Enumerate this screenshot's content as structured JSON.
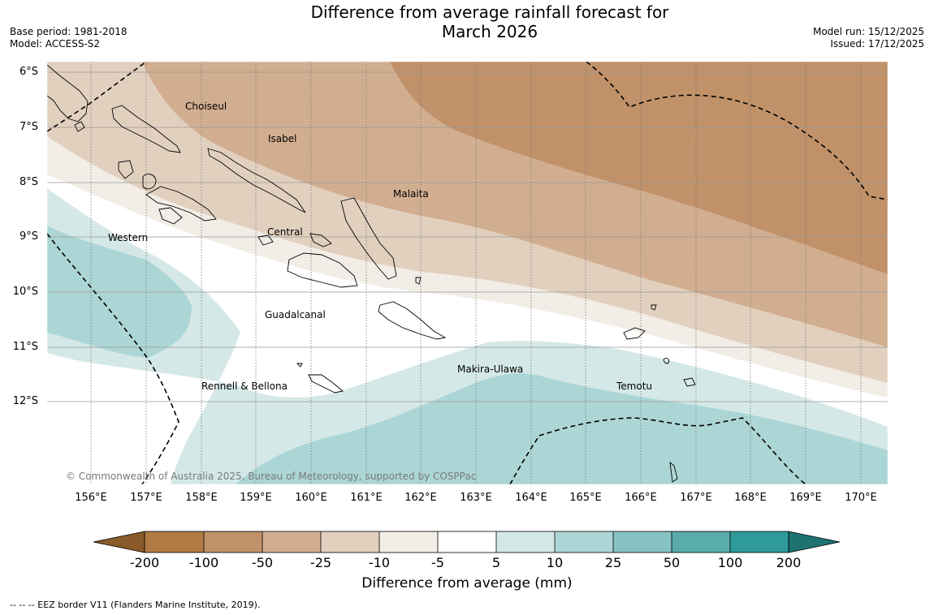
{
  "title_line1": "Difference from average rainfall forecast for",
  "title_line2": "March 2026",
  "meta_left": {
    "base_period": "Base period: 1981-2018",
    "model": "Model: ACCESS-S2"
  },
  "meta_right": {
    "model_run": "Model run: 15/12/2025",
    "issued": "Issued: 17/12/2025"
  },
  "lat_labels": [
    "6°S",
    "7°S",
    "8°S",
    "9°S",
    "10°S",
    "11°S",
    "12°S"
  ],
  "lon_labels": [
    "156°E",
    "157°E",
    "158°E",
    "159°E",
    "160°E",
    "161°E",
    "162°E",
    "163°E",
    "164°E",
    "165°E",
    "166°E",
    "167°E",
    "168°E",
    "169°E",
    "170°E"
  ],
  "places": {
    "choiseul": "Choiseul",
    "isabel": "Isabel",
    "malaita": "Malaita",
    "central": "Central",
    "western": "Western",
    "guadalcanal": "Guadalcanal",
    "makira": "Makira-Ulawa",
    "temotu": "Temotu",
    "rennell": "Rennell & Bellona"
  },
  "copyright": "© Commonwealth of Australia 2025, Bureau of Meteorology, supported by COSPPac",
  "colorbar": {
    "ticks": [
      "-200",
      "-100",
      "-50",
      "-25",
      "-10",
      "-5",
      "5",
      "10",
      "25",
      "50",
      "100",
      "200"
    ],
    "colors": [
      "#8a5a2b",
      "#b07a45",
      "#c19169",
      "#d2ae90",
      "#e2d0bf",
      "#f2ede6",
      "#ffffff",
      "#d5e8e8",
      "#acd6d6",
      "#86c2c2",
      "#5aabab",
      "#2e9a9a",
      "#1f7272"
    ],
    "title": "Difference from average (mm)"
  },
  "footnote": "--  --  -- EEZ border V11 (Flanders Marine Institute, 2019)."
}
